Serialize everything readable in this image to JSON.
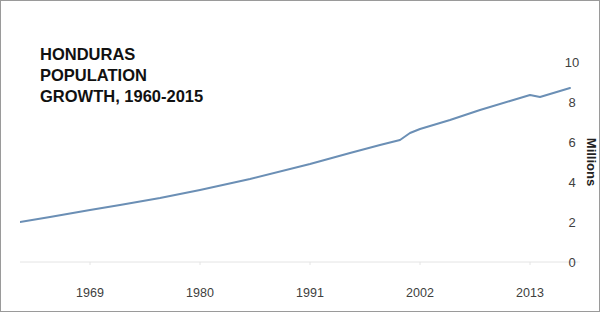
{
  "chart_data": {
    "type": "line",
    "title": "HONDURAS POPULATION GROWTH, 1960-2015",
    "y_label": "Millions",
    "x": [
      1962,
      1965,
      1969,
      1972,
      1976,
      1980,
      1985,
      1991,
      1995,
      1998,
      2000,
      2001,
      2002,
      2005,
      2008,
      2011,
      2013,
      2014,
      2017
    ],
    "series": [
      {
        "name": "Population",
        "color": "#6b8fb5",
        "values": [
          2.0,
          2.25,
          2.6,
          2.85,
          3.2,
          3.6,
          4.15,
          4.9,
          5.45,
          5.85,
          6.1,
          6.45,
          6.65,
          7.1,
          7.6,
          8.05,
          8.35,
          8.25,
          8.7
        ]
      }
    ],
    "xlim": [
      1962,
      2018
    ],
    "xticks": [
      1969,
      1980,
      1991,
      2002,
      2013
    ],
    "ylim": [
      0,
      10
    ],
    "yticks": [
      0,
      2,
      4,
      6,
      8,
      10
    ],
    "grid": false
  }
}
